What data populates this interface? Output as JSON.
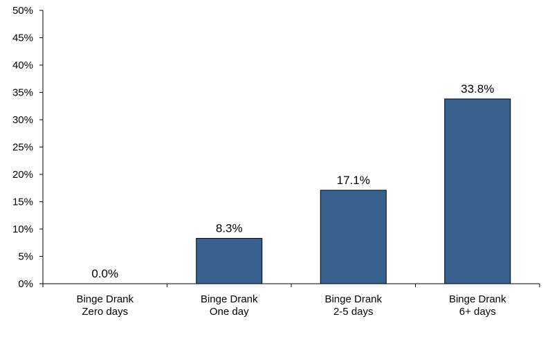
{
  "chart_data": {
    "type": "bar",
    "categories": [
      [
        "Binge Drank",
        "Zero days"
      ],
      [
        "Binge Drank",
        "One day"
      ],
      [
        "Binge Drank",
        "2-5 days"
      ],
      [
        "Binge Drank",
        "6+ days"
      ]
    ],
    "values": [
      0.0,
      8.3,
      17.1,
      33.8
    ],
    "data_labels": [
      "0.0%",
      "8.3%",
      "17.1%",
      "33.8%"
    ],
    "ylim": [
      0,
      50
    ],
    "y_ticks": [
      0,
      5,
      10,
      15,
      20,
      25,
      30,
      35,
      40,
      45,
      50
    ],
    "y_tick_labels": [
      "0%",
      "5%",
      "10%",
      "15%",
      "20%",
      "25%",
      "30%",
      "35%",
      "40%",
      "45%",
      "50%"
    ],
    "bar_color": "#37618F",
    "grid": false,
    "legend": "none"
  }
}
